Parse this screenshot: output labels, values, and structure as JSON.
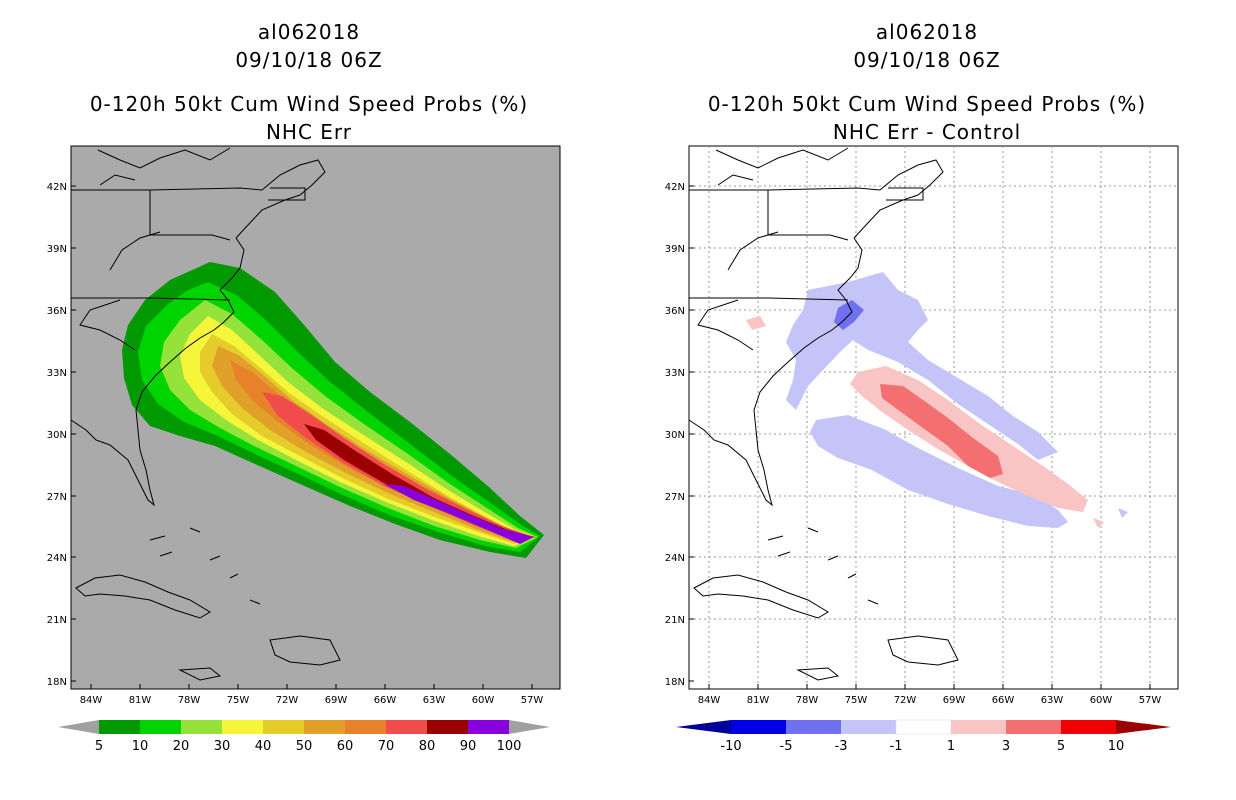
{
  "left_panel": {
    "storm_id": "al062018",
    "datetime": "09/10/18 06Z",
    "product": "0-120h 50kt Cum Wind Speed Probs (%)",
    "subtitle": "NHC Err",
    "background_color": "#aaaaaa",
    "colorbar": {
      "labels": [
        "5",
        "10",
        "20",
        "30",
        "40",
        "50",
        "60",
        "70",
        "80",
        "90",
        "100"
      ],
      "colors": [
        "#009a00",
        "#00d400",
        "#94e23a",
        "#f5f53a",
        "#e6cc2a",
        "#e0a02a",
        "#e8822a",
        "#f04c4c",
        "#9a0000",
        "#8800dc"
      ],
      "over_under_color": "#a0a0a0"
    }
  },
  "right_panel": {
    "storm_id": "al062018",
    "datetime": "09/10/18 06Z",
    "product": "0-120h 50kt Cum Wind Speed Probs (%)",
    "subtitle": "NHC Err - Control",
    "background_color": "#ffffff",
    "colorbar": {
      "labels": [
        "-10",
        "-5",
        "-3",
        "-1",
        "1",
        "3",
        "5",
        "10"
      ],
      "colors": [
        "#0000e6",
        "#7070f0",
        "#c4c4f8",
        "#ffffff",
        "#f8c4c4",
        "#f47070",
        "#f00000"
      ],
      "under_color": "#00009a",
      "over_color": "#9a0000"
    }
  },
  "axes": {
    "lon_labels": [
      "84W",
      "81W",
      "78W",
      "75W",
      "72W",
      "69W",
      "66W",
      "63W",
      "60W",
      "57W"
    ],
    "lat_labels": [
      "42N",
      "39N",
      "36N",
      "33N",
      "30N",
      "27N",
      "24N",
      "21N",
      "18N"
    ]
  }
}
